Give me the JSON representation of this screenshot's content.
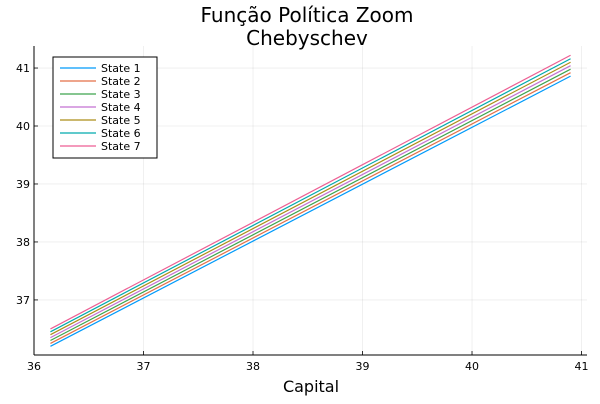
{
  "chart_data": {
    "type": "line",
    "title_line1": "Função Política Zoom",
    "title_line2": "Chebyschev",
    "xlabel": "Capital",
    "ylabel": "",
    "xlim": [
      36,
      41.05
    ],
    "ylim": [
      36.05,
      41.38
    ],
    "xticks": [
      36,
      37,
      38,
      39,
      40,
      41
    ],
    "yticks": [
      37,
      38,
      39,
      40,
      41
    ],
    "xtick_labels": [
      "36",
      "37",
      "38",
      "39",
      "40",
      "41"
    ],
    "ytick_labels": [
      "37",
      "38",
      "39",
      "40",
      "41"
    ],
    "grid": true,
    "legend_position": "top-left",
    "series": [
      {
        "name": "State 1",
        "color": "#009AFA",
        "x": [
          36.15,
          40.9
        ],
        "y": [
          36.2,
          40.86
        ]
      },
      {
        "name": "State 2",
        "color": "#E36F47",
        "x": [
          36.15,
          40.9
        ],
        "y": [
          36.25,
          40.92
        ]
      },
      {
        "name": "State 3",
        "color": "#3EA44E",
        "x": [
          36.15,
          40.9
        ],
        "y": [
          36.3,
          40.98
        ]
      },
      {
        "name": "State 4",
        "color": "#C371D2",
        "x": [
          36.15,
          40.9
        ],
        "y": [
          36.35,
          41.04
        ]
      },
      {
        "name": "State 5",
        "color": "#AC8E18",
        "x": [
          36.15,
          40.9
        ],
        "y": [
          36.4,
          41.1
        ]
      },
      {
        "name": "State 6",
        "color": "#00AAAE",
        "x": [
          36.15,
          40.9
        ],
        "y": [
          36.45,
          41.16
        ]
      },
      {
        "name": "State 7",
        "color": "#ED5E93",
        "x": [
          36.15,
          40.9
        ],
        "y": [
          36.5,
          41.22
        ]
      }
    ]
  }
}
